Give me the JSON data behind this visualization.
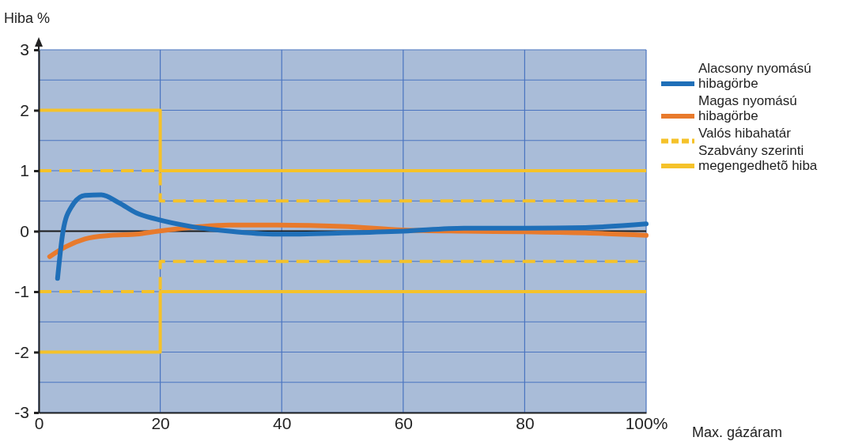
{
  "chart_data": {
    "type": "line",
    "xlabel": "Max. gázáram",
    "ylabel": "Hiba %",
    "xlim": [
      0,
      100
    ],
    "xticks": [
      0,
      20,
      40,
      60,
      80,
      {
        "value": 100,
        "label": "100%"
      }
    ],
    "ylim": [
      -3,
      3
    ],
    "yticks": [
      -3,
      {
        "value": -2.5,
        "label": null
      },
      -2,
      {
        "value": -1.5,
        "label": null
      },
      -1,
      {
        "value": -0.5,
        "label": null
      },
      0,
      {
        "value": 0.5,
        "label": null
      },
      1,
      {
        "value": 1.5,
        "label": null
      },
      2,
      {
        "value": 2.5,
        "label": null
      },
      3
    ],
    "grid": true,
    "legend": "right",
    "ref_lines": [
      {
        "axis": "y",
        "value": 0,
        "color": "#1a1a1a"
      }
    ],
    "series": [
      {
        "name": "Alacsony nyomású hibagörbe",
        "color": "#1f6fb8",
        "x": [
          3.1,
          4,
          5.3,
          7.6,
          10.3,
          13.2,
          16.1,
          19.3,
          24.9,
          31.4,
          39.2,
          50,
          60,
          70,
          80,
          90,
          100
        ],
        "values": [
          -0.78,
          0,
          0.39,
          0.59,
          0.6,
          0.47,
          0.3,
          0.2,
          0.08,
          0,
          -0.05,
          -0.03,
          0,
          0.05,
          0.05,
          0.06,
          0.12
        ]
      },
      {
        "name": "Magas nyomású hibagörbe",
        "color": "#e87a2c",
        "x": [
          1.8,
          4.4,
          7.6,
          11.8,
          16.1,
          19.7,
          24.9,
          31.4,
          39.2,
          50,
          60,
          70,
          80,
          90,
          100
        ],
        "values": [
          -0.42,
          -0.26,
          -0.13,
          -0.07,
          -0.05,
          0,
          0.06,
          0.1,
          0.1,
          0.08,
          0.02,
          0,
          -0.01,
          -0.03,
          -0.07
        ]
      },
      {
        "name": "Valós hibahatár",
        "color": "#f5c22a",
        "line_style": "dashed",
        "x": [
          0,
          20,
          20,
          100
        ],
        "values": [
          1,
          1,
          0.5,
          0.5
        ]
      },
      {
        "color": "#f5c22a",
        "line_style": "dashed",
        "x": [
          0,
          20,
          20,
          100
        ],
        "values": [
          -1,
          -1,
          -0.5,
          -0.5
        ]
      },
      {
        "name": "Szabvány szerinti megengedhetõ hiba",
        "color": "#f5c22a",
        "line_style": "solid",
        "x": [
          0,
          20,
          20,
          100
        ],
        "values": [
          2,
          2,
          1,
          1
        ]
      },
      {
        "color": "#f5c22a",
        "line_style": "solid",
        "x": [
          0,
          20,
          20,
          100
        ],
        "values": [
          -2,
          -2,
          -1,
          -1
        ]
      }
    ]
  }
}
